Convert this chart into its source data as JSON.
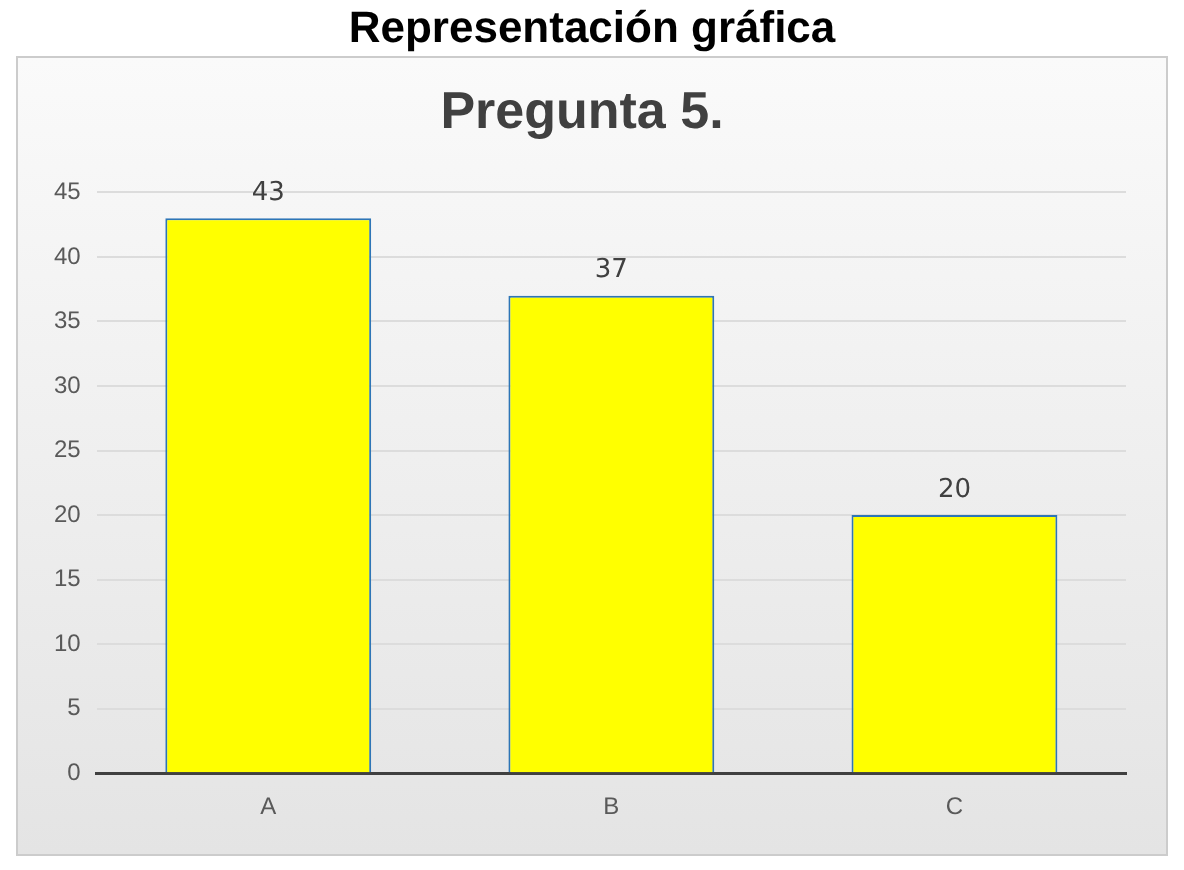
{
  "chart_data": {
    "type": "bar",
    "title": "Representación gráfica",
    "subtitle": "Pregunta 5.",
    "categories": [
      "A",
      "B",
      "C"
    ],
    "values": [
      43,
      37,
      20
    ],
    "color": "#ffff00",
    "ylim": [
      0,
      45
    ],
    "yticks": [
      0,
      5,
      10,
      15,
      20,
      25,
      30,
      35,
      40,
      45
    ],
    "grid": "y",
    "legend": false,
    "data_labels": true
  }
}
